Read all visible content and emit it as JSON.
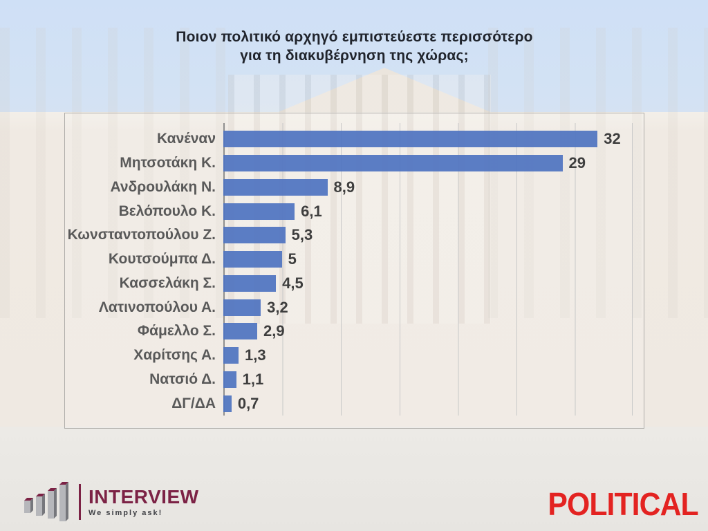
{
  "title": {
    "line1": "Ποιον πολιτικό αρχηγό εμπιστεύεστε περισσότερο",
    "line2": "για τη διακυβέρνηση της χώρας;"
  },
  "chart_data": {
    "type": "bar",
    "orientation": "horizontal",
    "title": "Ποιον πολιτικό αρχηγό εμπιστεύεστε περισσότερο για τη διακυβέρνηση της χώρας;",
    "categories": [
      "Κανέναν",
      "Μητσοτάκη Κ.",
      "Ανδρουλάκη Ν.",
      "Βελόπουλο Κ.",
      "Κωνσταντοπούλου Ζ.",
      "Κουτσούμπα Δ.",
      "Κασσελάκη Σ.",
      "Λατινοπούλου Α.",
      "Φάμελλο Σ.",
      "Χαρίτσης Α.",
      "Νατσιό Δ.",
      "ΔΓ/ΔΑ"
    ],
    "values": [
      32,
      29,
      8.9,
      6.1,
      5.3,
      5,
      4.5,
      3.2,
      2.9,
      1.3,
      1.1,
      0.7
    ],
    "value_labels": [
      "32",
      "29",
      "8,9",
      "6,1",
      "5,3",
      "5",
      "4,5",
      "3,2",
      "2,9",
      "1,3",
      "1,1",
      "0,7"
    ],
    "xlim": [
      0,
      35
    ],
    "gridline_interval": 5,
    "grid": true,
    "legend": false,
    "bar_color": "#4e73c0"
  },
  "background": {
    "description": "faded photo of the Hellenic Parliament building",
    "sky_color": "#cfe0f6",
    "building_color": "#efe9e2",
    "ground_color": "#e8e6e2"
  },
  "footer": {
    "interview_logo": {
      "name": "INTERVIEW",
      "tagline": "We simply ask!",
      "brand_color": "#7c2245",
      "mark": "ascending-3d-bars-icon"
    },
    "political_logo": {
      "text": "POLITICAL",
      "color": "#e32321"
    }
  }
}
